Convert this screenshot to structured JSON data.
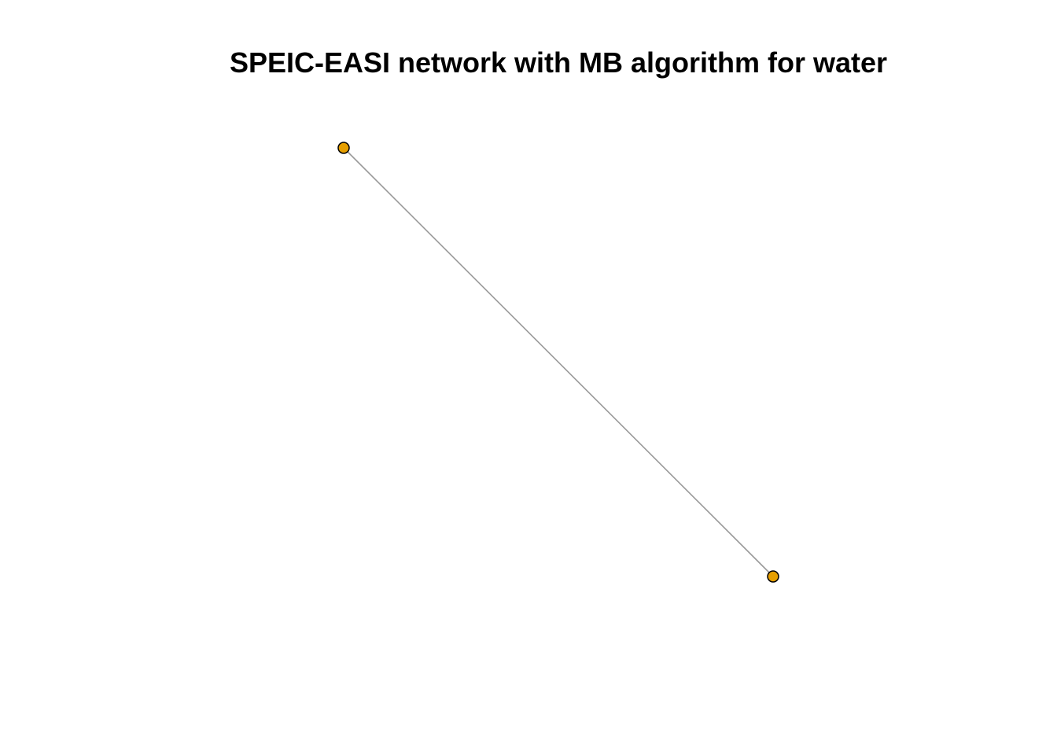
{
  "title": "SPEIC-EASI network with MB algorithm for water",
  "network": {
    "nodes": [
      {
        "id": "node-1",
        "fill": "#E69F00",
        "stroke": "#000000"
      },
      {
        "id": "node-2",
        "fill": "#E69F00",
        "stroke": "#000000"
      }
    ],
    "edges": [
      {
        "from": "node-1",
        "to": "node-2",
        "color": "#999999"
      }
    ]
  },
  "colors": {
    "background": "#ffffff",
    "node_fill": "#E69F00",
    "edge": "#999999"
  }
}
